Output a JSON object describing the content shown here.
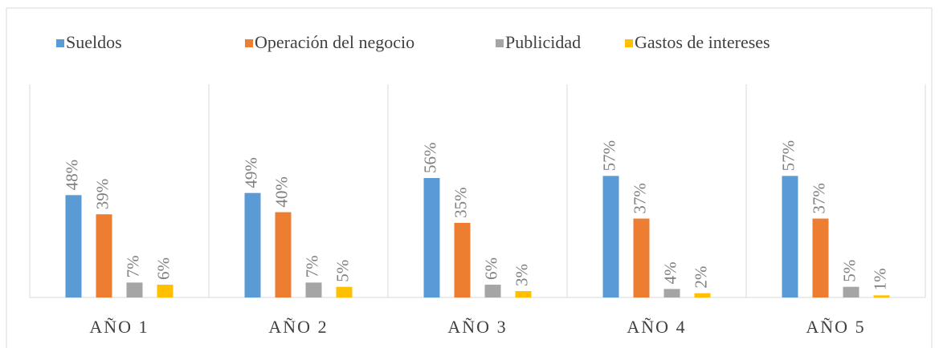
{
  "chart_data": {
    "type": "bar",
    "categories": [
      "AÑO 1",
      "AÑO 2",
      "AÑO 3",
      "AÑO 4",
      "AÑO 5"
    ],
    "series": [
      {
        "name": "Sueldos",
        "color": "#5b9bd5",
        "values": [
          48,
          49,
          56,
          57,
          57
        ],
        "value_labels": [
          "48%",
          "49%",
          "56%",
          "57%",
          "57%"
        ]
      },
      {
        "name": "Operación del negocio",
        "color": "#ed7d31",
        "values": [
          39,
          40,
          35,
          37,
          37
        ],
        "value_labels": [
          "39%",
          "40%",
          "35%",
          "37%",
          "37%"
        ]
      },
      {
        "name": "Publicidad",
        "color": "#a5a5a5",
        "values": [
          7,
          7,
          6,
          4,
          5
        ],
        "value_labels": [
          "7%",
          "7%",
          "6%",
          "4%",
          "5%"
        ]
      },
      {
        "name": "Gastos de intereses",
        "color": "#ffc000",
        "values": [
          6,
          5,
          3,
          2,
          1
        ],
        "value_labels": [
          "6%",
          "5%",
          "3%",
          "2%",
          "1%"
        ]
      }
    ],
    "ylim": [
      0,
      100
    ],
    "legend": "top"
  }
}
